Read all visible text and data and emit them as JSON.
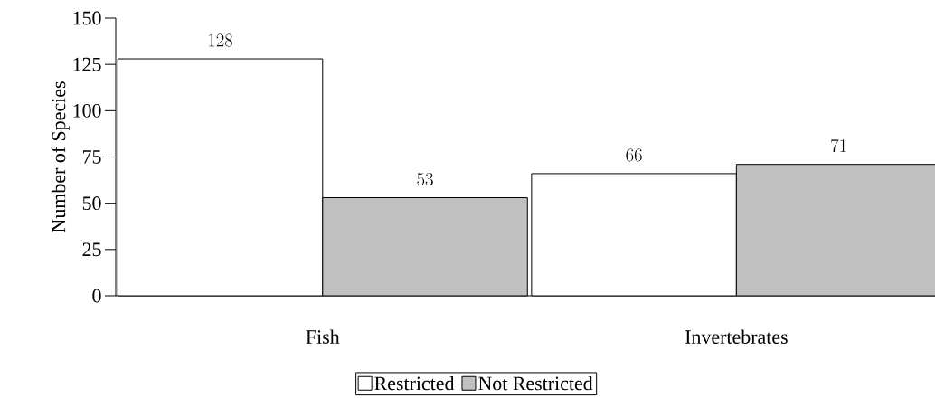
{
  "chart_data": {
    "type": "bar",
    "ylabel": "Number of Species",
    "categories": [
      "Fish",
      "Invertebrates"
    ],
    "series": [
      {
        "name": "Restricted",
        "color": "#ffffff",
        "values": [
          128,
          66
        ]
      },
      {
        "name": "Not Restricted",
        "color": "#c0c0c0",
        "values": [
          53,
          71
        ]
      }
    ],
    "ylim": [
      0,
      150
    ],
    "yticks": [
      0,
      25,
      50,
      75,
      100,
      125,
      150
    ],
    "data_labels": true,
    "legend": "bottom",
    "grid": false
  }
}
